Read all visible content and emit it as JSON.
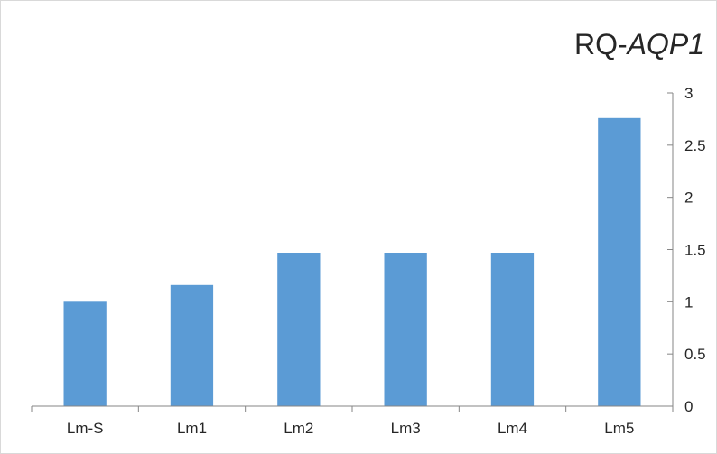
{
  "chart_data": {
    "type": "bar",
    "title_prefix": "RQ-",
    "title_gene": "AQP1",
    "categories": [
      "Lm-S",
      "Lm1",
      "Lm2",
      "Lm3",
      "Lm4",
      "Lm5"
    ],
    "values": [
      1.0,
      1.16,
      1.47,
      1.47,
      1.47,
      2.76
    ],
    "ylim": [
      0,
      3
    ],
    "yticks": [
      0,
      0.5,
      1,
      1.5,
      2,
      2.5,
      3
    ],
    "y_axis_side": "right",
    "grid": false,
    "legend": "none",
    "bar_color": "#5b9bd5",
    "axis_color": "#868686"
  }
}
